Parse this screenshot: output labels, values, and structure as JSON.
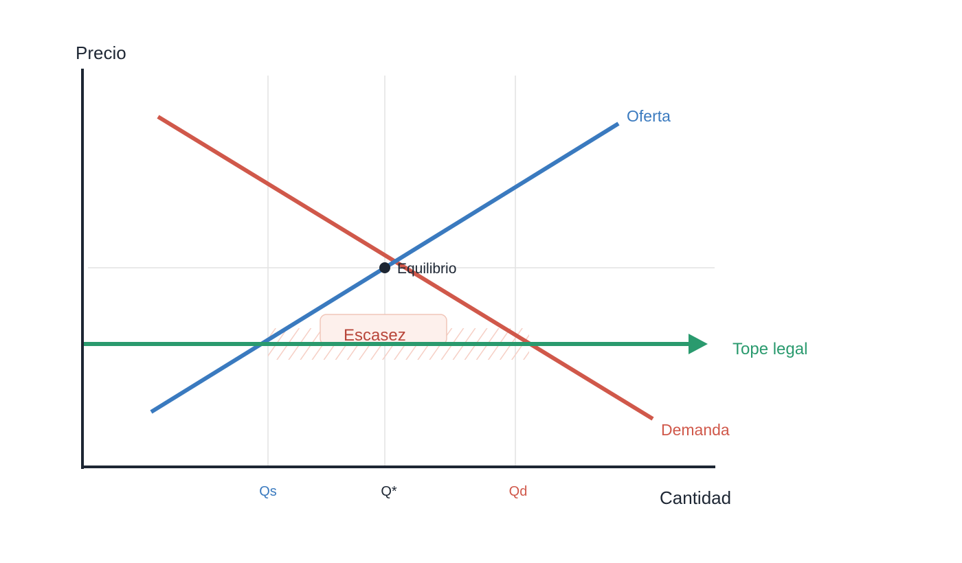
{
  "axes": {
    "y_label": "Precio",
    "x_label": "Cantidad"
  },
  "ticks": {
    "qs": "Qs",
    "qstar": "Q*",
    "qd": "Qd"
  },
  "curves": {
    "supply": {
      "label": "Oferta",
      "color": "#3a7abf"
    },
    "demand": {
      "label": "Demanda",
      "color": "#d0584a"
    },
    "ceiling": {
      "label": "Tope legal",
      "color": "#2a9a6e"
    }
  },
  "equilibrium": {
    "label": "Equilibrio",
    "color": "#1d2633"
  },
  "shortage": {
    "label": "Escasez",
    "color": "#b8463a",
    "fill": "#fdf0ec",
    "border": "#f0c5b8"
  },
  "colors": {
    "axis": "#1d2633",
    "grid": "#e2e2e2",
    "hatch": "#f6cfc5"
  }
}
